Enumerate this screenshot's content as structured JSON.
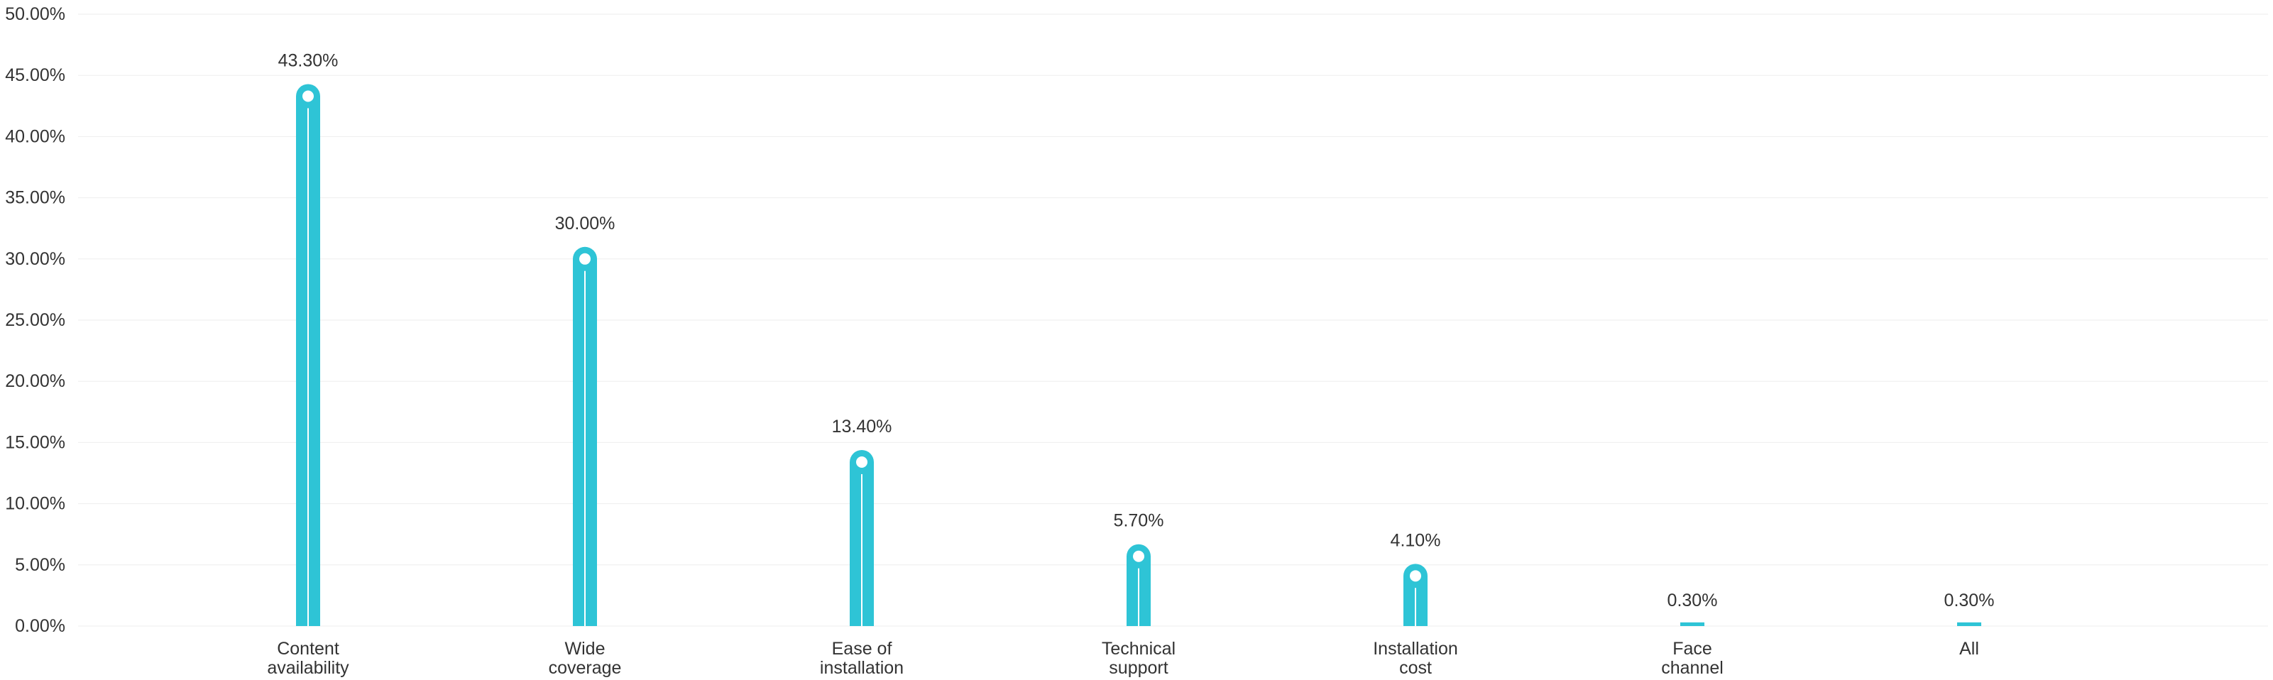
{
  "chart_data": {
    "type": "bar",
    "title": "",
    "xlabel": "",
    "ylabel": "",
    "categories": [
      [
        "Content",
        "availability"
      ],
      [
        "Wide",
        "coverage"
      ],
      [
        "Ease of",
        "installation"
      ],
      [
        "Technical",
        "support"
      ],
      [
        "Installation",
        "cost"
      ],
      [
        "Face",
        "channel"
      ],
      [
        "All"
      ]
    ],
    "values": [
      43.3,
      30.0,
      13.4,
      5.7,
      4.1,
      0.3,
      0.3
    ],
    "data_labels": [
      "43.30%",
      "30.00%",
      "13.40%",
      "5.70%",
      "4.10%",
      "0.30%",
      "0.30%"
    ],
    "ylim": [
      0,
      50
    ],
    "yticks": [
      0,
      5,
      10,
      15,
      20,
      25,
      30,
      35,
      40,
      45,
      50
    ],
    "ytick_labels": [
      "0.00%",
      "5.00%",
      "10.00%",
      "15.00%",
      "20.00%",
      "25.00%",
      "30.00%",
      "35.00%",
      "40.00%",
      "45.00%",
      "50.00%"
    ],
    "grid": true,
    "legend": "none",
    "colors": {
      "bar": "#2EC4D6",
      "grid": "#EEEEEE",
      "text": "#333333"
    }
  }
}
